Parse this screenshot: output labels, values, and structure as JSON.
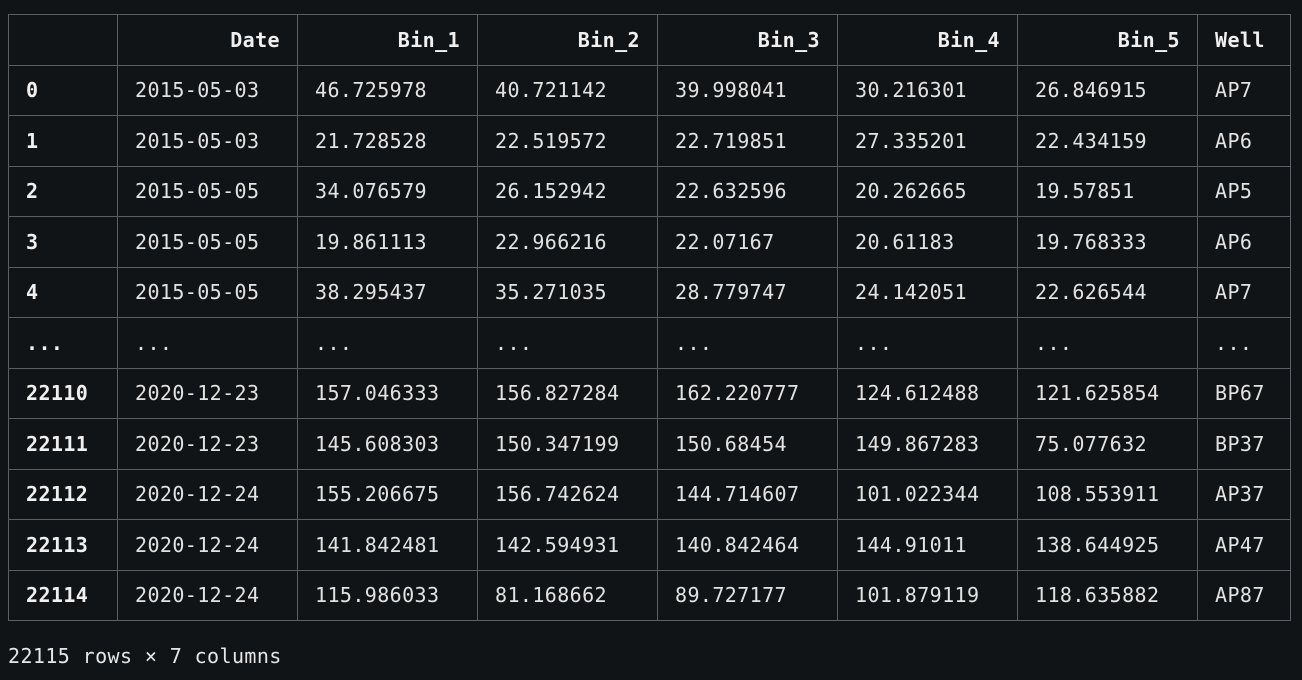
{
  "table": {
    "columns": [
      "",
      "Date",
      "Bin_1",
      "Bin_2",
      "Bin_3",
      "Bin_4",
      "Bin_5",
      "Well"
    ],
    "rows": [
      {
        "index": "0",
        "cells": [
          "2015-05-03",
          "46.725978",
          "40.721142",
          "39.998041",
          "30.216301",
          "26.846915",
          "AP7"
        ]
      },
      {
        "index": "1",
        "cells": [
          "2015-05-03",
          "21.728528",
          "22.519572",
          "22.719851",
          "27.335201",
          "22.434159",
          "AP6"
        ]
      },
      {
        "index": "2",
        "cells": [
          "2015-05-05",
          "34.076579",
          "26.152942",
          "22.632596",
          "20.262665",
          "19.57851",
          "AP5"
        ]
      },
      {
        "index": "3",
        "cells": [
          "2015-05-05",
          "19.861113",
          "22.966216",
          "22.07167",
          "20.61183",
          "19.768333",
          "AP6"
        ]
      },
      {
        "index": "4",
        "cells": [
          "2015-05-05",
          "38.295437",
          "35.271035",
          "28.779747",
          "24.142051",
          "22.626544",
          "AP7"
        ]
      },
      {
        "index": "...",
        "cells": [
          "...",
          "...",
          "...",
          "...",
          "...",
          "...",
          "..."
        ]
      },
      {
        "index": "22110",
        "cells": [
          "2020-12-23",
          "157.046333",
          "156.827284",
          "162.220777",
          "124.612488",
          "121.625854",
          "BP67"
        ]
      },
      {
        "index": "22111",
        "cells": [
          "2020-12-23",
          "145.608303",
          "150.347199",
          "150.68454",
          "149.867283",
          "75.077632",
          "BP37"
        ]
      },
      {
        "index": "22112",
        "cells": [
          "2020-12-24",
          "155.206675",
          "156.742624",
          "144.714607",
          "101.022344",
          "108.553911",
          "AP37"
        ]
      },
      {
        "index": "22113",
        "cells": [
          "2020-12-24",
          "141.842481",
          "142.594931",
          "140.842464",
          "144.91011",
          "138.644925",
          "AP47"
        ]
      },
      {
        "index": "22114",
        "cells": [
          "2020-12-24",
          "115.986033",
          "81.168662",
          "89.727177",
          "101.879119",
          "118.635882",
          "AP87"
        ]
      }
    ]
  },
  "shape_text": "22115 rows × 7 columns",
  "colors": {
    "background": "#111416",
    "grid_line": "#5a5f63",
    "text": "#e6e6e6"
  }
}
